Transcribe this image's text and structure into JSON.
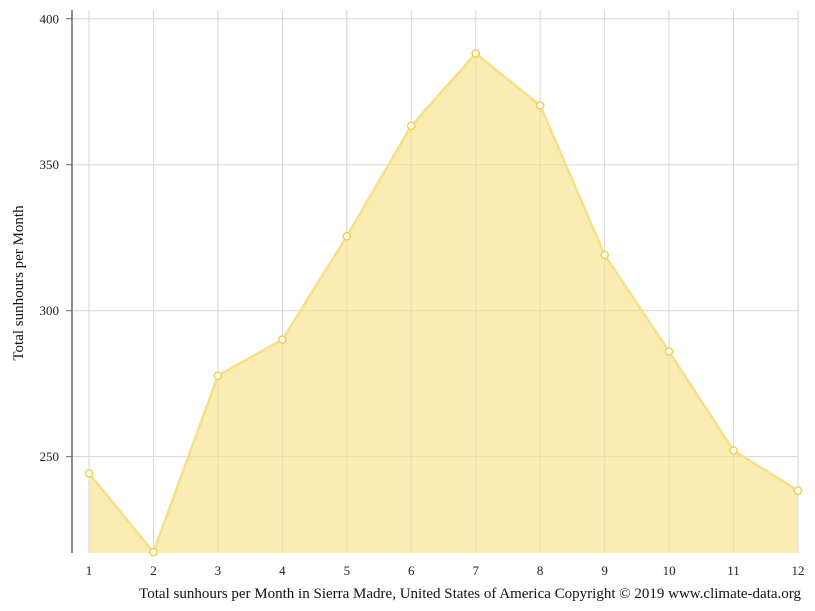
{
  "chart_data": {
    "type": "area",
    "x": [
      1,
      2,
      3,
      4,
      5,
      6,
      7,
      8,
      9,
      10,
      11,
      12
    ],
    "categories": [
      "1",
      "2",
      "3",
      "4",
      "5",
      "6",
      "7",
      "8",
      "9",
      "10",
      "11",
      "12"
    ],
    "series": [
      {
        "values": [
          244.3,
          217.3,
          277.7,
          290.1,
          325.5,
          363.3,
          388.1,
          370.3,
          319.1,
          286.0,
          252.1,
          238.4
        ],
        "color": "#f7e084"
      }
    ],
    "ylabel": "Total sunhours per Month",
    "ylim": [
      217,
      403
    ],
    "yticks": [
      "400",
      "350",
      "300",
      "250"
    ],
    "grid": true,
    "caption": "Total sunhours per Month in Sierra Madre, United States of America Copyright © 2019 www.climate-data.org"
  }
}
